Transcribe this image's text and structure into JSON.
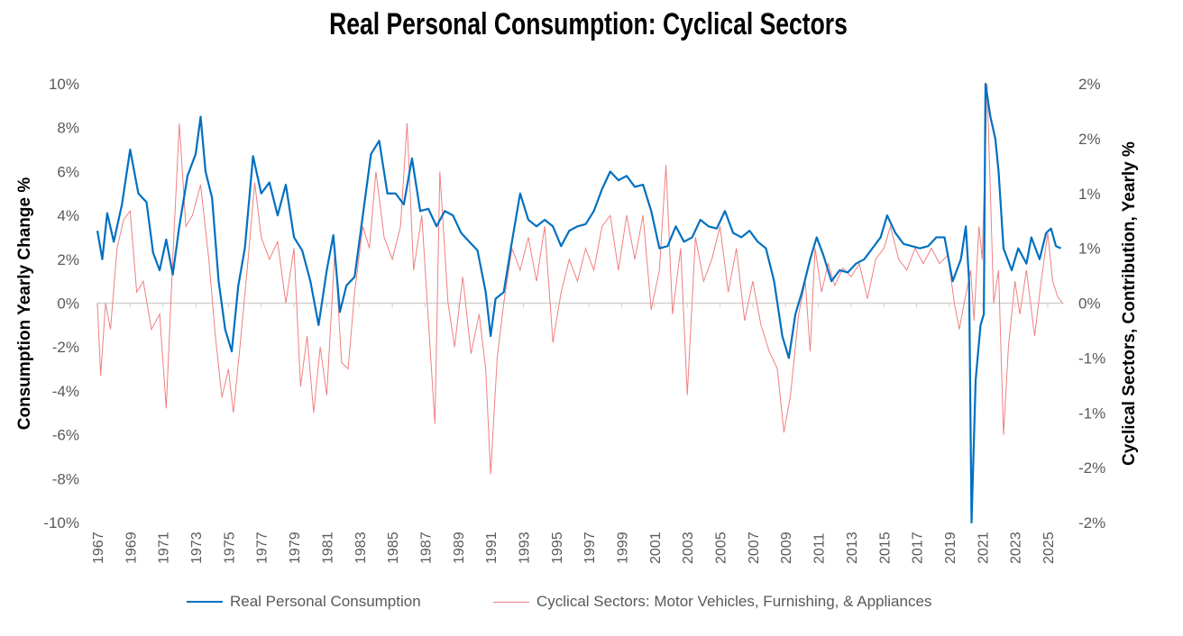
{
  "chart_data": {
    "type": "line",
    "title": "Real Personal Consumption: Cyclical Sectors",
    "ylabel": "Consumption Yearly Change %",
    "y2label": "Cyclical Sectors, Contribution, Yearly %",
    "ylim": [
      -10,
      10
    ],
    "y2lim": [
      -2,
      2
    ],
    "yticks": [
      "10%",
      "8%",
      "6%",
      "4%",
      "2%",
      "0%",
      "-2%",
      "-4%",
      "-6%",
      "-8%",
      "-10%"
    ],
    "y2ticks": [
      "2%",
      "2%",
      "1%",
      "1%",
      "0%",
      "-1%",
      "-1%",
      "-2%",
      "-2%"
    ],
    "xticks": [
      "1967",
      "1969",
      "1971",
      "1973",
      "1975",
      "1977",
      "1979",
      "1981",
      "1983",
      "1985",
      "1987",
      "1989",
      "1991",
      "1993",
      "1995",
      "1997",
      "1999",
      "2001",
      "2003",
      "2005",
      "2007",
      "2009",
      "2011",
      "2013",
      "2015",
      "2017",
      "2019",
      "2021",
      "2023",
      "2025"
    ],
    "legend_position": "bottom",
    "colors": {
      "consumption": "#0070C0",
      "cyclical": "#F08080"
    },
    "series": [
      {
        "name": "Real Personal Consumption",
        "axis": "left",
        "x": [
          1967.0,
          1967.3,
          1967.6,
          1968.0,
          1968.5,
          1969.0,
          1969.5,
          1970.0,
          1970.4,
          1970.8,
          1971.2,
          1971.6,
          1972.0,
          1972.5,
          1973.0,
          1973.3,
          1973.6,
          1974.0,
          1974.4,
          1974.8,
          1975.2,
          1975.6,
          1976.0,
          1976.5,
          1977.0,
          1977.5,
          1978.0,
          1978.5,
          1979.0,
          1979.5,
          1980.0,
          1980.5,
          1981.0,
          1981.4,
          1981.8,
          1982.2,
          1982.7,
          1983.2,
          1983.7,
          1984.2,
          1984.7,
          1985.2,
          1985.7,
          1986.2,
          1986.7,
          1987.2,
          1987.7,
          1988.2,
          1988.7,
          1989.2,
          1989.7,
          1990.2,
          1990.7,
          1991.0,
          1991.3,
          1991.8,
          1992.3,
          1992.8,
          1993.3,
          1993.8,
          1994.3,
          1994.8,
          1995.3,
          1995.8,
          1996.3,
          1996.8,
          1997.3,
          1997.8,
          1998.3,
          1998.8,
          1999.3,
          1999.8,
          2000.3,
          2000.8,
          2001.3,
          2001.8,
          2002.3,
          2002.8,
          2003.3,
          2003.8,
          2004.3,
          2004.8,
          2005.3,
          2005.8,
          2006.3,
          2006.8,
          2007.3,
          2007.8,
          2008.3,
          2008.8,
          2009.2,
          2009.6,
          2010.0,
          2010.5,
          2010.9,
          2011.3,
          2011.8,
          2012.3,
          2012.8,
          2013.3,
          2013.8,
          2014.3,
          2014.8,
          2015.2,
          2015.7,
          2016.2,
          2016.7,
          2017.2,
          2017.7,
          2018.2,
          2018.7,
          2019.2,
          2019.7,
          2020.0,
          2020.2,
          2020.35,
          2020.6,
          2020.9,
          2021.1,
          2021.2,
          2021.5,
          2021.8,
          2022.0,
          2022.3,
          2022.8,
          2023.2,
          2023.7,
          2024.0,
          2024.5,
          2024.9,
          2025.2,
          2025.5,
          2025.8
        ],
        "values": [
          3.3,
          2.0,
          4.1,
          2.8,
          4.5,
          7.0,
          5.0,
          4.6,
          2.3,
          1.5,
          2.9,
          1.3,
          3.5,
          5.8,
          6.8,
          8.5,
          6.0,
          4.8,
          1.0,
          -1.2,
          -2.2,
          0.8,
          2.5,
          6.7,
          5.0,
          5.5,
          4.0,
          5.4,
          3.0,
          2.4,
          1.0,
          -1.0,
          1.5,
          3.1,
          -0.4,
          0.8,
          1.2,
          4.0,
          6.8,
          7.4,
          5.0,
          5.0,
          4.5,
          6.6,
          4.2,
          4.3,
          3.5,
          4.2,
          4.0,
          3.2,
          2.8,
          2.4,
          0.5,
          -1.5,
          0.2,
          0.5,
          2.8,
          5.0,
          3.8,
          3.5,
          3.8,
          3.5,
          2.6,
          3.3,
          3.5,
          3.6,
          4.2,
          5.2,
          6.0,
          5.6,
          5.8,
          5.3,
          5.4,
          4.2,
          2.5,
          2.6,
          3.5,
          2.8,
          3.0,
          3.8,
          3.5,
          3.4,
          4.2,
          3.2,
          3.0,
          3.3,
          2.8,
          2.5,
          1.0,
          -1.5,
          -2.5,
          -0.5,
          0.5,
          2.0,
          3.0,
          2.2,
          1.0,
          1.5,
          1.4,
          1.8,
          2.0,
          2.5,
          3.0,
          4.0,
          3.2,
          2.7,
          2.6,
          2.5,
          2.6,
          3.0,
          3.0,
          1.0,
          2.0,
          3.5,
          1.0,
          -10.0,
          -3.5,
          -1.0,
          -0.5,
          10.0,
          8.5,
          7.5,
          6.0,
          2.5,
          1.5,
          2.5,
          1.8,
          3.0,
          2.0,
          3.2,
          3.4,
          2.6,
          2.5
        ]
      },
      {
        "name": "Cyclical Sectors: Motor Vehicles, Furnishing, & Appliances",
        "axis": "right",
        "x": [
          1967.0,
          1967.2,
          1967.5,
          1967.8,
          1968.2,
          1968.6,
          1969.0,
          1969.4,
          1969.8,
          1970.3,
          1970.8,
          1971.2,
          1971.6,
          1972.0,
          1972.4,
          1972.8,
          1973.3,
          1973.8,
          1974.2,
          1974.6,
          1975.0,
          1975.3,
          1975.7,
          1976.2,
          1976.6,
          1977.0,
          1977.5,
          1978.0,
          1978.5,
          1979.0,
          1979.4,
          1979.8,
          1980.2,
          1980.6,
          1981.0,
          1981.5,
          1981.9,
          1982.3,
          1982.7,
          1983.2,
          1983.6,
          1984.0,
          1984.5,
          1985.0,
          1985.5,
          1985.9,
          1986.3,
          1986.8,
          1987.2,
          1987.6,
          1987.9,
          1988.4,
          1988.8,
          1989.3,
          1989.8,
          1990.3,
          1990.7,
          1991.0,
          1991.4,
          1991.8,
          1992.3,
          1992.8,
          1993.3,
          1993.8,
          1994.3,
          1994.8,
          1995.3,
          1995.8,
          1996.3,
          1996.8,
          1997.3,
          1997.8,
          1998.3,
          1998.8,
          1999.3,
          1999.8,
          2000.3,
          2000.8,
          2001.3,
          2001.7,
          2002.1,
          2002.6,
          2003.0,
          2003.5,
          2004.0,
          2004.5,
          2005.0,
          2005.5,
          2006.0,
          2006.5,
          2007.0,
          2007.5,
          2008.0,
          2008.5,
          2008.9,
          2009.3,
          2009.8,
          2010.2,
          2010.5,
          2010.8,
          2011.2,
          2011.6,
          2012.0,
          2012.5,
          2013.0,
          2013.5,
          2014.0,
          2014.5,
          2015.0,
          2015.4,
          2015.9,
          2016.4,
          2016.9,
          2017.4,
          2017.9,
          2018.4,
          2018.9,
          2019.3,
          2019.6,
          2019.9,
          2020.3,
          2020.5,
          2020.8,
          2021.0,
          2021.3,
          2021.5,
          2021.7,
          2022.0,
          2022.3,
          2022.6,
          2023.0,
          2023.3,
          2023.7,
          2024.2,
          2024.6,
          2025.0,
          2025.3,
          2025.6,
          2025.9
        ],
        "values": [
          0,
          -0.66,
          0,
          -0.24,
          0.5,
          0.76,
          0.84,
          0.1,
          0.2,
          -0.24,
          -0.1,
          -0.96,
          0.4,
          1.64,
          0.7,
          0.8,
          1.08,
          0.4,
          -0.3,
          -0.86,
          -0.6,
          -1.0,
          -0.4,
          0.4,
          1.1,
          0.6,
          0.4,
          0.56,
          0,
          0.5,
          -0.76,
          -0.3,
          -1.0,
          -0.4,
          -0.84,
          0.5,
          -0.54,
          -0.6,
          0.1,
          0.7,
          0.5,
          1.2,
          0.6,
          0.4,
          0.7,
          1.64,
          0.3,
          0.8,
          -0.16,
          -1.1,
          1.2,
          0,
          -0.4,
          0.24,
          -0.46,
          -0.1,
          -0.6,
          -1.56,
          -0.5,
          0,
          0.5,
          0.3,
          0.6,
          0.2,
          0.7,
          -0.36,
          0.1,
          0.4,
          0.2,
          0.5,
          0.3,
          0.7,
          0.8,
          0.3,
          0.8,
          0.4,
          0.8,
          -0.06,
          0.3,
          1.26,
          -0.1,
          0.5,
          -0.84,
          0.6,
          0.2,
          0.4,
          0.7,
          0.1,
          0.5,
          -0.16,
          0.2,
          -0.2,
          -0.44,
          -0.6,
          -1.18,
          -0.84,
          -0.1,
          0.2,
          -0.44,
          0.5,
          0.1,
          0.36,
          0.16,
          0.32,
          0.24,
          0.36,
          0.04,
          0.4,
          0.5,
          0.7,
          0.4,
          0.3,
          0.5,
          0.36,
          0.5,
          0.36,
          0.44,
          0,
          -0.24,
          0,
          0.3,
          -0.16,
          0.7,
          0.4,
          2.0,
          1.0,
          0,
          0.3,
          -1.2,
          -0.4,
          0.2,
          -0.1,
          0.3,
          -0.3,
          0.2,
          0.64,
          0.2,
          0.06,
          0
        ]
      }
    ]
  }
}
